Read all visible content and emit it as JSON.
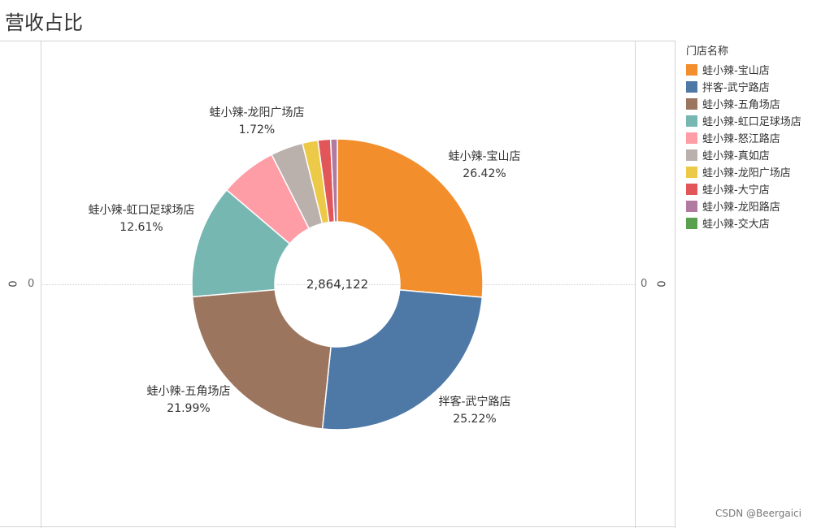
{
  "title": "营收占比",
  "axis": {
    "left_zero": "0",
    "right_zero": "0",
    "left_rot": "0",
    "right_rot": "0"
  },
  "legend": {
    "title": "门店名称",
    "items": [
      {
        "label": "蛙小辣-宝山店",
        "color": "#f28e2b"
      },
      {
        "label": "拌客-武宁路店",
        "color": "#4e79a7"
      },
      {
        "label": "蛙小辣-五角场店",
        "color": "#9c755f"
      },
      {
        "label": "蛙小辣-虹口足球场店",
        "color": "#76b7b2"
      },
      {
        "label": "蛙小辣-怒江路店",
        "color": "#ff9da7"
      },
      {
        "label": "蛙小辣-真如店",
        "color": "#bab0ac"
      },
      {
        "label": "蛙小辣-龙阳广场店",
        "color": "#edc948"
      },
      {
        "label": "蛙小辣-大宁店",
        "color": "#e15759"
      },
      {
        "label": "蛙小辣-龙阳路店",
        "color": "#b07aa1"
      },
      {
        "label": "蛙小辣-交大店",
        "color": "#59a14f"
      }
    ]
  },
  "chart_data": {
    "type": "pie",
    "donut": true,
    "center_label": "2,864,122",
    "slices": [
      {
        "name": "蛙小辣-宝山店",
        "percent": 26.42,
        "pct_label": "26.42%",
        "color": "#f28e2b",
        "show_label": true
      },
      {
        "name": "拌客-武宁路店",
        "percent": 25.22,
        "pct_label": "25.22%",
        "color": "#4e79a7",
        "show_label": true
      },
      {
        "name": "蛙小辣-五角场店",
        "percent": 21.99,
        "pct_label": "21.99%",
        "color": "#9c755f",
        "show_label": true
      },
      {
        "name": "蛙小辣-虹口足球场店",
        "percent": 12.61,
        "pct_label": "12.61%",
        "color": "#76b7b2",
        "show_label": true
      },
      {
        "name": "蛙小辣-怒江路店",
        "percent": 6.3,
        "color": "#ff9da7",
        "show_label": false
      },
      {
        "name": "蛙小辣-真如店",
        "percent": 3.6,
        "color": "#bab0ac",
        "show_label": false
      },
      {
        "name": "蛙小辣-龙阳广场店",
        "percent": 1.72,
        "pct_label": "1.72%",
        "color": "#edc948",
        "show_label": true
      },
      {
        "name": "蛙小辣-大宁店",
        "percent": 1.4,
        "color": "#e15759",
        "show_label": false
      },
      {
        "name": "蛙小辣-龙阳路店",
        "percent": 0.74,
        "color": "#b07aa1",
        "show_label": false
      },
      {
        "name": "蛙小辣-交大店",
        "percent": 0.0,
        "color": "#59a14f",
        "show_label": false
      }
    ]
  },
  "watermark": "CSDN @Beergaici"
}
